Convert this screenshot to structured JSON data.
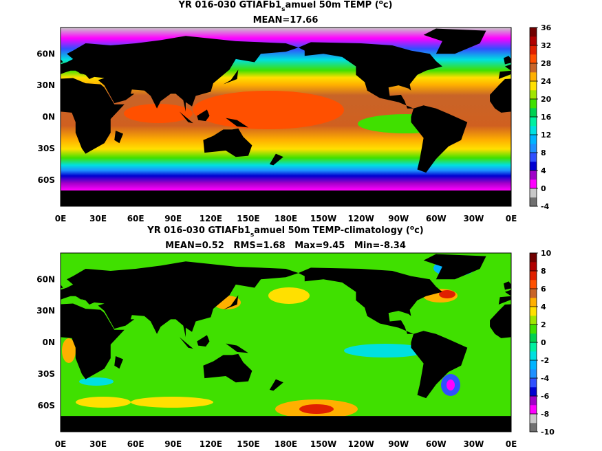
{
  "panels": [
    {
      "title": {
        "text_1": "YR 016-030 GTIAFb1",
        "subscript": "s",
        "text_2": "amuel 50m TEMP (",
        "superscript": "o",
        "text_3": "c)"
      },
      "subtitle": "MEAN=17.66",
      "colorbar": {
        "ticks": [
          -4,
          0,
          4,
          8,
          12,
          16,
          20,
          24,
          28,
          32,
          36
        ],
        "colors": [
          "#707070",
          "#c8c8c8",
          "#ff00ff",
          "#a000c8",
          "#0000d0",
          "#3050ff",
          "#1e90ff",
          "#00b4ff",
          "#00e0e0",
          "#00f0a0",
          "#00d050",
          "#40e000",
          "#a0e600",
          "#ffe000",
          "#ffb000",
          "#c86428",
          "#ff5000",
          "#e02000",
          "#b00000",
          "#700000"
        ]
      }
    },
    {
      "title": {
        "text_1": "YR 016-030 GTIAFb1",
        "subscript": "s",
        "text_2": "amuel 50m TEMP-climatology (",
        "superscript": "o",
        "text_3": "c)"
      },
      "subtitle": "MEAN=0.52   RMS=1.68   Max=9.45   Min=-8.34",
      "colorbar": {
        "ticks": [
          -10,
          -8,
          -6,
          -4,
          -2,
          0,
          2,
          4,
          6,
          8,
          10
        ],
        "colors": [
          "#707070",
          "#c8c8c8",
          "#ff00ff",
          "#a000c8",
          "#0000d0",
          "#3050ff",
          "#1e90ff",
          "#00b4ff",
          "#00e0e0",
          "#00f0a0",
          "#00d050",
          "#40e000",
          "#a0e600",
          "#ffe000",
          "#ffb000",
          "#c86428",
          "#ff5000",
          "#e02000",
          "#b00000",
          "#700000"
        ]
      }
    }
  ],
  "latitude_labels": [
    "60N",
    "30N",
    "0N",
    "30S",
    "60S"
  ],
  "longitude_labels": [
    "0E",
    "30E",
    "60E",
    "90E",
    "120E",
    "150E",
    "180E",
    "150W",
    "120W",
    "90W",
    "60W",
    "30W",
    "0E"
  ]
}
